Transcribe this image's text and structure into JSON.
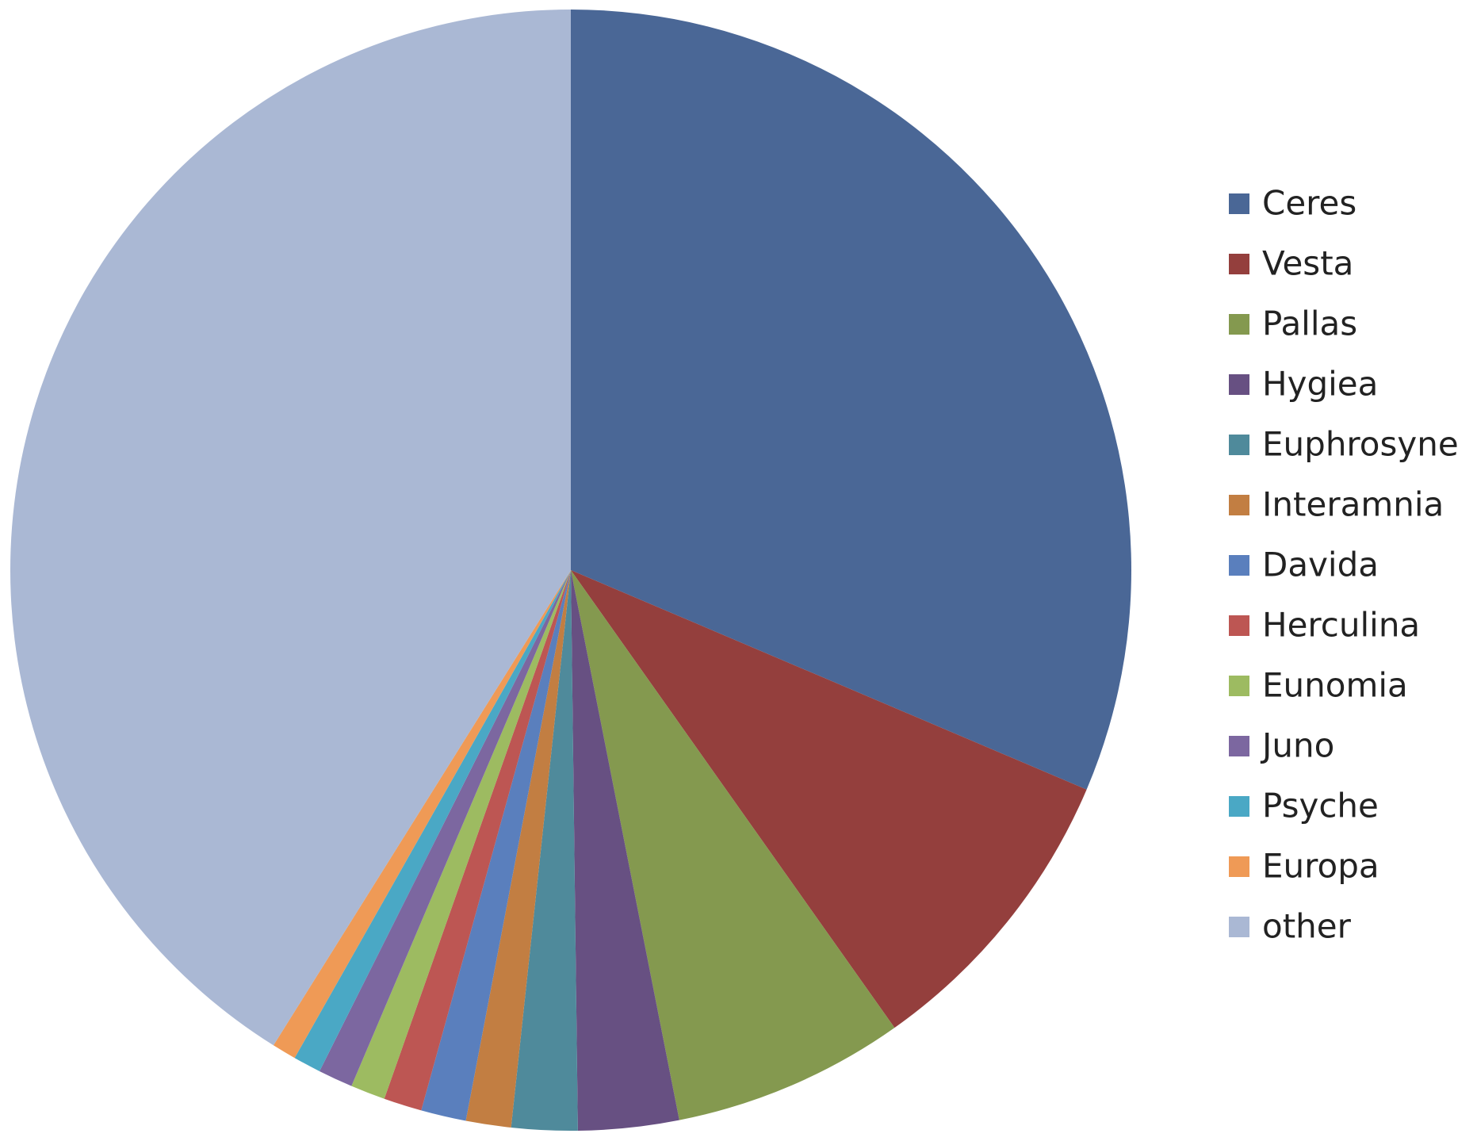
{
  "chart_data": {
    "type": "pie",
    "categories": [
      "Ceres",
      "Vesta",
      "Pallas",
      "Hygiea",
      "Euphrosyne",
      "Interamnia",
      "Davida",
      "Herculina",
      "Eunomia",
      "Juno",
      "Psyche",
      "Europa",
      "other"
    ],
    "values": [
      31.4,
      8.8,
      6.7,
      2.9,
      1.9,
      1.3,
      1.3,
      1.1,
      1.0,
      1.0,
      0.8,
      0.7,
      41.1
    ],
    "colors": [
      "#4a6796",
      "#943f3d",
      "#84994f",
      "#675082",
      "#4f8a9b",
      "#c27e42",
      "#5a7fbd",
      "#bd5653",
      "#9dbb61",
      "#7c67a0",
      "#4aa8c5",
      "#ef9a56",
      "#aab8d4"
    ],
    "legend": "right"
  }
}
